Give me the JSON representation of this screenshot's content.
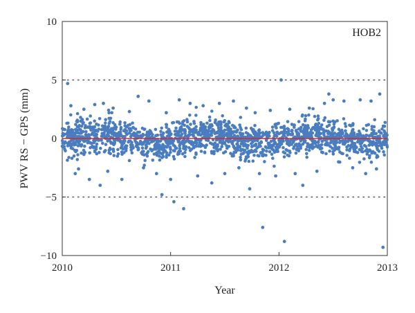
{
  "chart_data": {
    "type": "scatter",
    "title": "",
    "annotation": "HOB2",
    "xlabel": "Year",
    "ylabel": "PWV RS − GPS (mm)",
    "xlim": [
      2010,
      2013
    ],
    "ylim": [
      -10,
      10
    ],
    "xticks": [
      2010,
      2011,
      2012,
      2013
    ],
    "xtick_labels": [
      "2010",
      "2011",
      "2012",
      "2013"
    ],
    "yticks": [
      -10,
      -5,
      0,
      5,
      10
    ],
    "ytick_labels": [
      "−10",
      "−5",
      "0",
      "5",
      "10"
    ],
    "reference_lines": [
      {
        "y": 5,
        "style": "dotted",
        "color": "#555555"
      },
      {
        "y": -5,
        "style": "dotted",
        "color": "#555555"
      },
      {
        "y": 0,
        "style": "solid",
        "color": "#d62728"
      }
    ],
    "grid": false,
    "legend": "none",
    "series": [
      {
        "color": "#4a7dbf",
        "x": [
          2010.05,
          2010.08,
          2010.12,
          2010.15,
          2010.2,
          2010.25,
          2010.3,
          2010.35,
          2010.38,
          2010.42,
          2010.47,
          2010.55,
          2010.62,
          2010.7,
          2010.75,
          2010.8,
          2010.87,
          2010.92,
          2010.96,
          2011.0,
          2011.03,
          2011.08,
          2011.12,
          2011.18,
          2011.25,
          2011.3,
          2011.38,
          2011.45,
          2011.5,
          2011.58,
          2011.63,
          2011.7,
          2011.73,
          2011.78,
          2011.82,
          2011.85,
          2011.92,
          2011.97,
          2012.02,
          2012.05,
          2012.1,
          2012.15,
          2012.22,
          2012.28,
          2012.35,
          2012.42,
          2012.46,
          2012.5,
          2012.55,
          2012.6,
          2012.68,
          2012.75,
          2012.8,
          2012.85,
          2012.9,
          2012.93,
          2012.96
        ],
        "y": [
          4.7,
          2.8,
          -3.0,
          -2.6,
          2.5,
          -3.5,
          2.9,
          -4.0,
          3.0,
          -2.8,
          2.6,
          -3.5,
          2.3,
          3.6,
          -2.5,
          3.2,
          -3.0,
          -4.8,
          2.2,
          -3.5,
          -5.4,
          3.3,
          -6.0,
          3.0,
          -3.2,
          2.8,
          -3.8,
          3.0,
          -3.0,
          3.2,
          -2.5,
          2.6,
          -4.3,
          2.2,
          -3.0,
          -7.6,
          2.4,
          -3.2,
          5.0,
          -8.8,
          2.5,
          -3.0,
          -4.0,
          2.6,
          -2.8,
          3.0,
          3.8,
          3.3,
          -2.0,
          3.2,
          -2.5,
          3.3,
          -3.0,
          3.2,
          -2.6,
          3.8,
          -9.3
        ]
      }
    ]
  }
}
